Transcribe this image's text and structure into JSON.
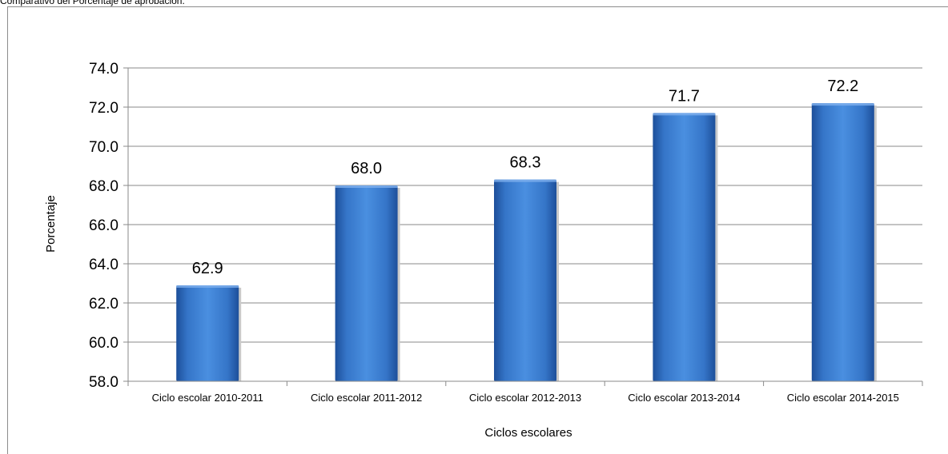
{
  "page": {
    "title": "Comparativo del Porcentaje de aprobación."
  },
  "chart_data": {
    "type": "bar",
    "categories": [
      "Ciclo escolar 2010-2011",
      "Ciclo escolar 2011-2012",
      "Ciclo escolar 2012-2013",
      "Ciclo escolar 2013-2014",
      "Ciclo escolar 2014-2015"
    ],
    "values": [
      62.9,
      68.0,
      68.3,
      71.7,
      72.2
    ],
    "data_labels": [
      "62.9",
      "68.0",
      "68.3",
      "71.7",
      "72.2"
    ],
    "yticks": [
      "58.0",
      "60.0",
      "62.0",
      "64.0",
      "66.0",
      "68.0",
      "70.0",
      "72.0",
      "74.0"
    ],
    "ylim": [
      58,
      74
    ],
    "xlabel": "Ciclos escolares",
    "ylabel": "Porcentaje",
    "grid": true,
    "legend": "none",
    "bar_color": "#3a7dd0"
  }
}
